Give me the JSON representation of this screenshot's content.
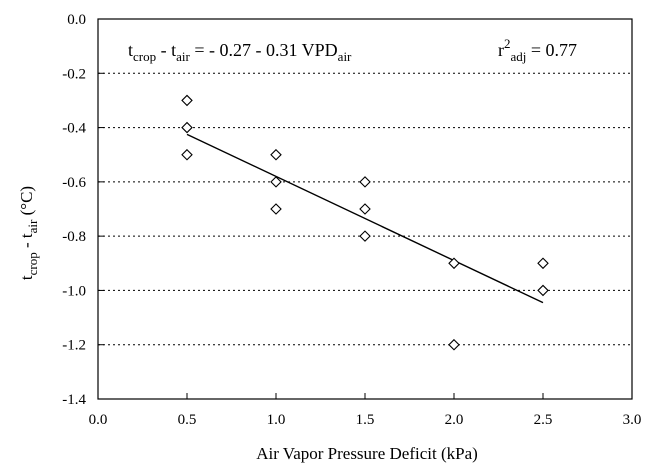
{
  "chart_data": {
    "type": "scatter",
    "xlabel": "Air Vapor Pressure Deficit (kPa)",
    "ylabel": {
      "base": "t",
      "sub1": "crop",
      "mid": " - t",
      "sub2": "air",
      "unit": " (°C)"
    },
    "xlim": [
      0.0,
      3.0
    ],
    "ylim": [
      -1.4,
      0.0
    ],
    "x_ticks": [
      "0.0",
      "0.5",
      "1.0",
      "1.5",
      "2.0",
      "2.5",
      "3.0"
    ],
    "y_ticks": [
      "0.0",
      "-0.2",
      "-0.4",
      "-0.6",
      "-0.8",
      "-1.0",
      "-1.2",
      "-1.4"
    ],
    "x_tick_values": [
      0.0,
      0.5,
      1.0,
      1.5,
      2.0,
      2.5,
      3.0
    ],
    "y_tick_values": [
      0.0,
      -0.2,
      -0.4,
      -0.6,
      -0.8,
      -1.0,
      -1.2,
      -1.4
    ],
    "grid": "horizontal dotted",
    "points": [
      {
        "x": 0.5,
        "y": -0.3
      },
      {
        "x": 0.5,
        "y": -0.4
      },
      {
        "x": 0.5,
        "y": -0.5
      },
      {
        "x": 1.0,
        "y": -0.5
      },
      {
        "x": 1.0,
        "y": -0.6
      },
      {
        "x": 1.0,
        "y": -0.7
      },
      {
        "x": 1.5,
        "y": -0.6
      },
      {
        "x": 1.5,
        "y": -0.7
      },
      {
        "x": 1.5,
        "y": -0.8
      },
      {
        "x": 2.0,
        "y": -0.9
      },
      {
        "x": 2.0,
        "y": -1.2
      },
      {
        "x": 2.5,
        "y": -0.9
      },
      {
        "x": 2.5,
        "y": -1.0
      }
    ],
    "fit_line": {
      "intercept": -0.27,
      "slope": -0.31,
      "x_start": 0.5,
      "x_end": 2.5
    },
    "equation": {
      "t1": "t",
      "sub_crop": "crop",
      "minus": " - t",
      "sub_air": "air",
      "rhs": " = - 0.27 - 0.31 VPD",
      "sub_air2": "air"
    },
    "r2": {
      "r": "r",
      "sup": "2",
      "sub": "adj",
      "value": " = 0.77"
    }
  }
}
